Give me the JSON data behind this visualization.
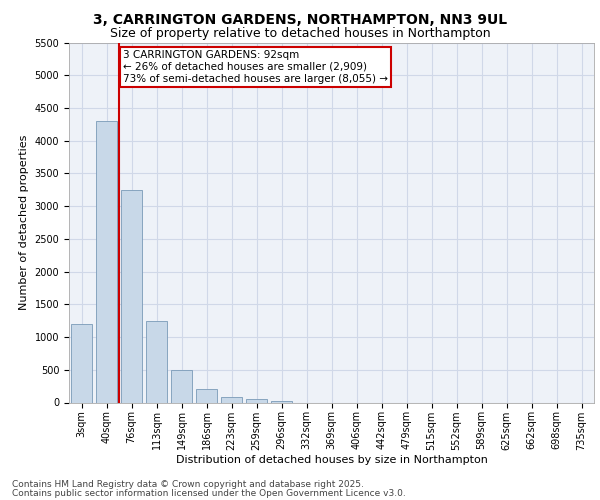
{
  "title_line1": "3, CARRINGTON GARDENS, NORTHAMPTON, NN3 9UL",
  "title_line2": "Size of property relative to detached houses in Northampton",
  "xlabel": "Distribution of detached houses by size in Northampton",
  "ylabel": "Number of detached properties",
  "categories": [
    "3sqm",
    "40sqm",
    "76sqm",
    "113sqm",
    "149sqm",
    "186sqm",
    "223sqm",
    "259sqm",
    "296sqm",
    "332sqm",
    "369sqm",
    "406sqm",
    "442sqm",
    "479sqm",
    "515sqm",
    "552sqm",
    "589sqm",
    "625sqm",
    "662sqm",
    "698sqm",
    "735sqm"
  ],
  "values": [
    1200,
    4300,
    3250,
    1250,
    500,
    200,
    80,
    50,
    30,
    0,
    0,
    0,
    0,
    0,
    0,
    0,
    0,
    0,
    0,
    0,
    0
  ],
  "bar_color": "#c8d8e8",
  "bar_edge_color": "#7a9ab8",
  "vline_x": 1.5,
  "vline_color": "#cc0000",
  "annotation_box_text": "3 CARRINGTON GARDENS: 92sqm\n← 26% of detached houses are smaller (2,909)\n73% of semi-detached houses are larger (8,055) →",
  "annotation_box_color": "#cc0000",
  "ylim": [
    0,
    5500
  ],
  "yticks": [
    0,
    500,
    1000,
    1500,
    2000,
    2500,
    3000,
    3500,
    4000,
    4500,
    5000,
    5500
  ],
  "grid_color": "#d0d8e8",
  "background_color": "#eef2f8",
  "footer_line1": "Contains HM Land Registry data © Crown copyright and database right 2025.",
  "footer_line2": "Contains public sector information licensed under the Open Government Licence v3.0.",
  "title_fontsize": 10,
  "subtitle_fontsize": 9,
  "axis_label_fontsize": 8,
  "tick_fontsize": 7,
  "footer_fontsize": 6.5,
  "ann_fontsize": 7.5
}
